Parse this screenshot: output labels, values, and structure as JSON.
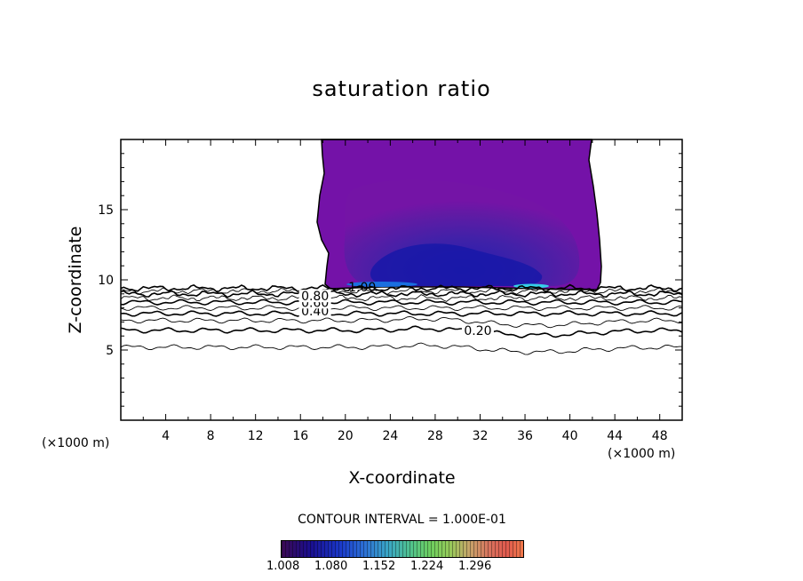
{
  "chart_data": {
    "type": "contour",
    "title": "saturation ratio",
    "xlabel": "X-coordinate",
    "ylabel": "Z-coordinate",
    "x_unit_label": "(×1000 m)",
    "y_unit_label": "(×1000 m)",
    "xlim": [
      0,
      50
    ],
    "ylim": [
      0,
      20
    ],
    "x_ticks": [
      4,
      8,
      12,
      16,
      20,
      24,
      28,
      32,
      36,
      40,
      44,
      48
    ],
    "y_ticks": [
      5,
      10,
      15
    ],
    "grid": false,
    "contour_interval_text": "CONTOUR INTERVAL = 1.000E-01",
    "contour_levels": [
      0.1,
      0.2,
      0.3,
      0.4,
      0.5,
      0.6,
      0.7,
      0.8,
      0.9,
      1.0
    ],
    "contour_labels": [
      "0.20",
      "0.40",
      "0.60",
      "0.80",
      "1.00"
    ],
    "contour_heights_km": [
      5.2,
      6.4,
      7.1,
      7.6,
      8.0,
      8.4,
      8.7,
      9.0,
      9.2,
      9.4
    ],
    "supersaturated_region": {
      "x_range": [
        18,
        42
      ],
      "z_range": [
        9.4,
        20
      ],
      "min_value": 1.008,
      "max_value": 1.3
    },
    "colorbar": {
      "tick_labels": [
        "1.008",
        "1.080",
        "1.152",
        "1.224",
        "1.296"
      ],
      "colors": [
        "#3b0a52",
        "#1a0e8f",
        "#1a37c8",
        "#3aa6c6",
        "#6fcf5e",
        "#c8a36a",
        "#e05a4e"
      ]
    }
  }
}
